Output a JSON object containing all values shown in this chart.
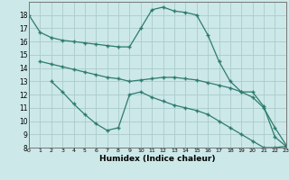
{
  "line1": {
    "x": [
      0,
      1,
      2,
      3,
      4,
      5,
      6,
      7,
      8,
      9,
      10,
      11,
      12,
      13,
      14,
      15,
      16,
      17,
      18,
      19,
      20,
      21,
      22,
      23
    ],
    "y": [
      18,
      16.7,
      16.3,
      16.1,
      16.0,
      15.9,
      15.8,
      15.7,
      15.6,
      15.6,
      17.0,
      18.4,
      18.6,
      18.3,
      18.2,
      18.0,
      16.5,
      14.5,
      13.0,
      12.2,
      12.2,
      11.1,
      8.8,
      8.1
    ]
  },
  "line2": {
    "x": [
      1,
      2,
      3,
      4,
      5,
      6,
      7,
      8,
      9,
      10,
      11,
      12,
      13,
      14,
      15,
      16,
      17,
      18,
      19,
      20,
      21,
      22,
      23
    ],
    "y": [
      14.5,
      14.3,
      14.1,
      13.9,
      13.7,
      13.5,
      13.3,
      13.2,
      13.0,
      13.1,
      13.2,
      13.3,
      13.3,
      13.2,
      13.1,
      12.9,
      12.7,
      12.5,
      12.2,
      11.8,
      11.0,
      9.5,
      8.2
    ]
  },
  "line3": {
    "x": [
      2,
      3,
      4,
      5,
      6,
      7,
      8,
      9,
      10,
      11,
      12,
      13,
      14,
      15,
      16,
      17,
      18,
      19,
      20,
      21,
      22,
      23
    ],
    "y": [
      13.0,
      12.2,
      11.3,
      10.5,
      9.8,
      9.3,
      9.5,
      12.0,
      12.2,
      11.8,
      11.5,
      11.2,
      11.0,
      10.8,
      10.5,
      10.0,
      9.5,
      9.0,
      8.5,
      8.0,
      8.0,
      8.1
    ]
  },
  "color": "#2e7b6e",
  "bg_color": "#cce8e8",
  "grid_color": "#aacccc",
  "xlabel": "Humidex (Indice chaleur)",
  "xlim": [
    0,
    23
  ],
  "ylim": [
    8,
    19
  ],
  "xticks": [
    0,
    1,
    2,
    3,
    4,
    5,
    6,
    7,
    8,
    9,
    10,
    11,
    12,
    13,
    14,
    15,
    16,
    17,
    18,
    19,
    20,
    21,
    22,
    23
  ],
  "yticks": [
    8,
    9,
    10,
    11,
    12,
    13,
    14,
    15,
    16,
    17,
    18
  ],
  "marker": "+"
}
